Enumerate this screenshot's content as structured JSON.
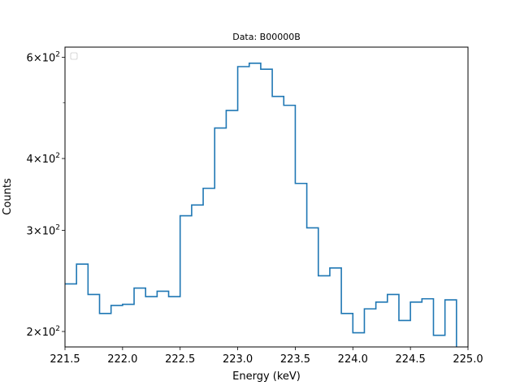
{
  "chart_data": {
    "type": "line",
    "drawstyle": "steps",
    "title": "Data: B00000B",
    "xlabel": "Energy (keV)",
    "ylabel": "Counts",
    "xlim": [
      221.5,
      225.0
    ],
    "ylim": [
      188,
      625
    ],
    "yscale": "log",
    "grid": false,
    "legend": "top-left (empty)",
    "color": "#1f77b4",
    "x_ticks": [
      {
        "value": 221.5,
        "label": "221.5"
      },
      {
        "value": 222.0,
        "label": "222.0"
      },
      {
        "value": 222.5,
        "label": "222.5"
      },
      {
        "value": 223.0,
        "label": "223.0"
      },
      {
        "value": 223.5,
        "label": "223.5"
      },
      {
        "value": 224.0,
        "label": "224.0"
      },
      {
        "value": 224.5,
        "label": "224.5"
      },
      {
        "value": 225.0,
        "label": "225.0"
      }
    ],
    "y_ticks": [
      {
        "value": 200,
        "mantissa": "2",
        "base": "10",
        "exp": "2"
      },
      {
        "value": 300,
        "mantissa": "3",
        "base": "10",
        "exp": "2"
      },
      {
        "value": 400,
        "mantissa": "4",
        "base": "10",
        "exp": "2"
      },
      {
        "value": 600,
        "mantissa": "6",
        "base": "10",
        "exp": "2"
      }
    ],
    "y_minor_ticks": [
      500
    ],
    "bin_edges": [
      221.5,
      221.6,
      221.7,
      221.8,
      221.9,
      222.0,
      222.1,
      222.2,
      222.3,
      222.4,
      222.5,
      222.6,
      222.7,
      222.8,
      222.9,
      223.0,
      223.1,
      223.2,
      223.3,
      223.4,
      223.5,
      223.6,
      223.7,
      223.8,
      223.9,
      224.0,
      224.1,
      224.2,
      224.3,
      224.4,
      224.5,
      224.6,
      224.7,
      224.8,
      224.9
    ],
    "values": [
      242,
      262,
      232,
      215,
      222,
      223,
      238,
      230,
      235,
      230,
      318,
      332,
      355,
      452,
      485,
      578,
      586,
      572,
      513,
      495,
      362,
      303,
      250,
      258,
      215,
      199,
      219,
      225,
      232,
      209,
      225,
      228,
      197,
      227
    ],
    "tail_drop": 188
  }
}
